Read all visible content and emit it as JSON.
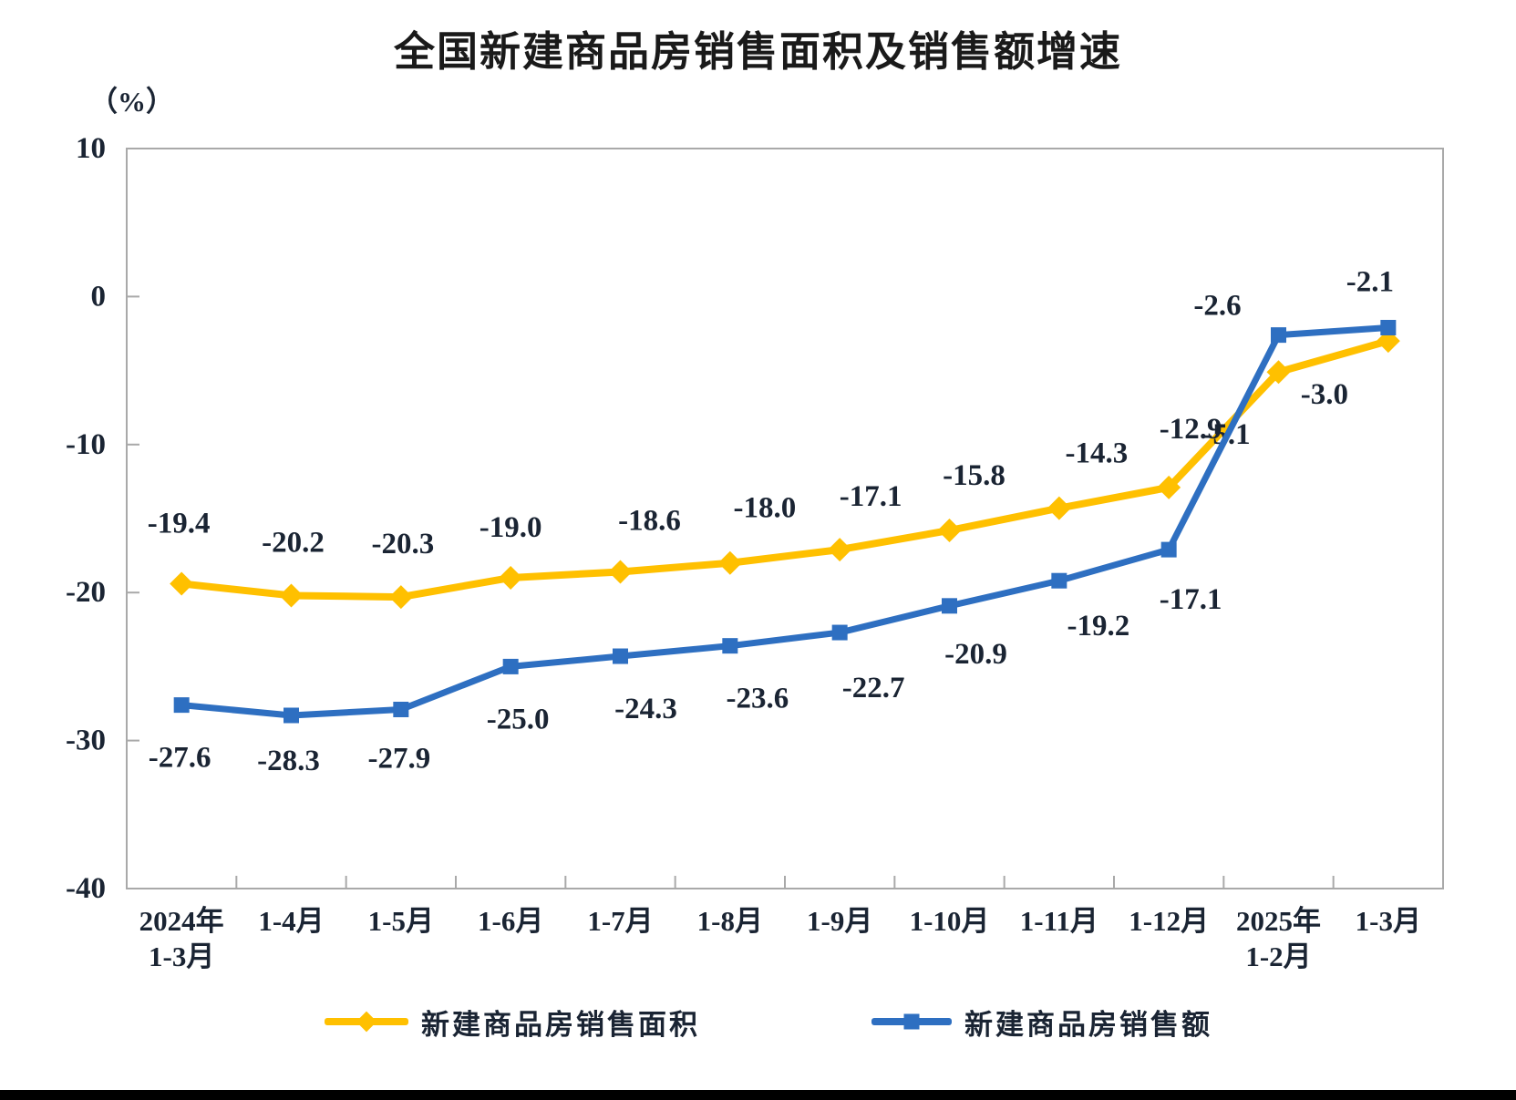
{
  "chart_data": {
    "type": "line",
    "title": "全国新建商品房销售面积及销售额增速",
    "unit_label": "（%）",
    "categories": [
      {
        "line1": "2024年",
        "line2": "1-3月"
      },
      {
        "line1": "1-4月"
      },
      {
        "line1": "1-5月"
      },
      {
        "line1": "1-6月"
      },
      {
        "line1": "1-7月"
      },
      {
        "line1": "1-8月"
      },
      {
        "line1": "1-9月"
      },
      {
        "line1": "1-10月"
      },
      {
        "line1": "1-11月"
      },
      {
        "line1": "1-12月"
      },
      {
        "line1": "2025年",
        "line2": "1-2月"
      },
      {
        "line1": "1-3月"
      }
    ],
    "series": [
      {
        "name": "新建商品房销售面积",
        "color": "#FFC000",
        "marker": "diamond",
        "values": [
          -19.4,
          -20.2,
          -20.3,
          -19.0,
          -18.6,
          -18.0,
          -17.1,
          -15.8,
          -14.3,
          -12.9,
          -5.1,
          -3.0
        ],
        "labels": [
          "-19.4",
          "-20.2",
          "-20.3",
          "-19.0",
          "-18.6",
          "-18.0",
          "-17.1",
          "-15.8",
          "-14.3",
          "-12.9",
          "-5.1",
          "-3.0"
        ],
        "label_offsets": [
          [
            -3,
            -66
          ],
          [
            2,
            -58
          ],
          [
            2,
            -58
          ],
          [
            0,
            -55
          ],
          [
            32,
            -56
          ],
          [
            38,
            -60
          ],
          [
            34,
            -58
          ],
          [
            27,
            -60
          ],
          [
            41,
            -60
          ],
          [
            24,
            -64
          ],
          [
            -57,
            69
          ],
          [
            -70,
            59
          ]
        ]
      },
      {
        "name": "新建商品房销售额",
        "color": "#2E6FC1",
        "marker": "square",
        "values": [
          -27.6,
          -28.3,
          -27.9,
          -25.0,
          -24.3,
          -23.6,
          -22.7,
          -20.9,
          -19.2,
          -17.1,
          -2.6,
          -2.1
        ],
        "labels": [
          "-27.6",
          "-28.3",
          "-27.9",
          "-25.0",
          "-24.3",
          "-23.6",
          "-22.7",
          "-20.9",
          "-19.2",
          "-17.1",
          "-2.6",
          "-2.1"
        ],
        "label_offsets": [
          [
            -2,
            58
          ],
          [
            -3,
            50
          ],
          [
            -2,
            54
          ],
          [
            8,
            58
          ],
          [
            28,
            58
          ],
          [
            30,
            58
          ],
          [
            37,
            61
          ],
          [
            29,
            53
          ],
          [
            43,
            50
          ],
          [
            24,
            55
          ],
          [
            -67,
            -32
          ],
          [
            -20,
            -50
          ]
        ]
      }
    ],
    "y_axis": {
      "min": -40,
      "max": 10,
      "ticks": [
        10,
        0,
        -10,
        -20,
        -30,
        -40
      ]
    },
    "grid": "off",
    "legend_position": "bottom",
    "colors": {
      "axis_frame": "#A9A9A9",
      "text_labels": "#1a2433",
      "title": "#1a1a1a"
    }
  }
}
